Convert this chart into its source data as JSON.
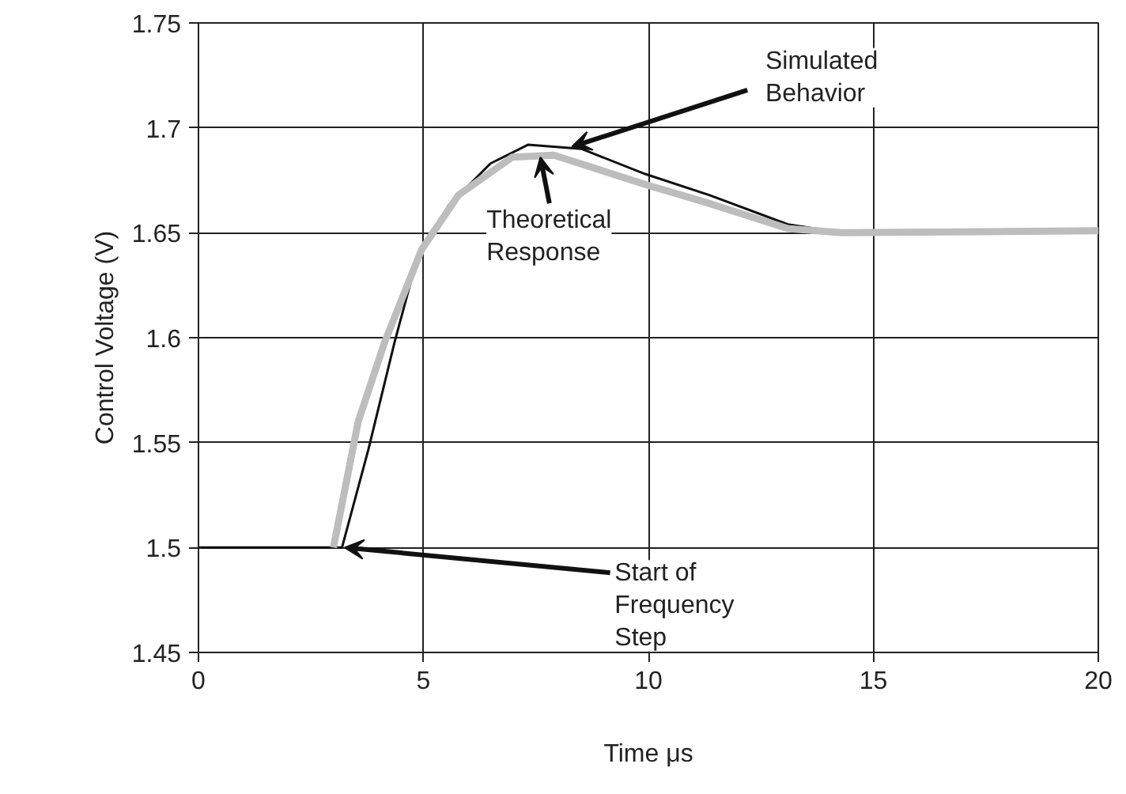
{
  "chart_data": {
    "type": "line",
    "xlabel": "Time μs",
    "ylabel": "Control Voltage (V)",
    "xlim": [
      0,
      20
    ],
    "xticks": [
      0,
      5,
      10,
      15,
      20
    ],
    "ylim": [
      1.45,
      1.75
    ],
    "yticks": [
      1.45,
      1.5,
      1.55,
      1.6,
      1.65,
      1.7,
      1.75
    ],
    "grid": true,
    "series": [
      {
        "color": "#111111",
        "x": [
          0,
          3.1,
          3.19,
          3.78,
          4.36,
          4.85,
          5.56,
          6.49,
          7.33,
          8.51,
          9.93,
          11.35,
          13.1,
          14.3,
          20
        ],
        "values": [
          1.5,
          1.5,
          1.5,
          1.547,
          1.598,
          1.637,
          1.663,
          1.683,
          1.692,
          1.69,
          1.678,
          1.668,
          1.654,
          1.65,
          1.65
        ]
      },
      {
        "color": "#bdbdbd",
        "x": [
          3.0,
          3.55,
          4.14,
          4.96,
          5.78,
          6.97,
          7.9,
          9.93,
          11.35,
          13.1,
          14.3,
          20
        ],
        "values": [
          1.5,
          1.56,
          1.598,
          1.642,
          1.668,
          1.686,
          1.687,
          1.673,
          1.664,
          1.652,
          1.65,
          1.651
        ]
      }
    ],
    "annotations": [
      {
        "text": "Simulated\nBehavior",
        "x": 8.3,
        "y": 1.691
      },
      {
        "text": "Theoretical\nResponse",
        "x": 7.6,
        "y": 1.686
      },
      {
        "text": "Start of\nFrequency\nStep",
        "x": 3.25,
        "y": 1.5
      }
    ]
  }
}
